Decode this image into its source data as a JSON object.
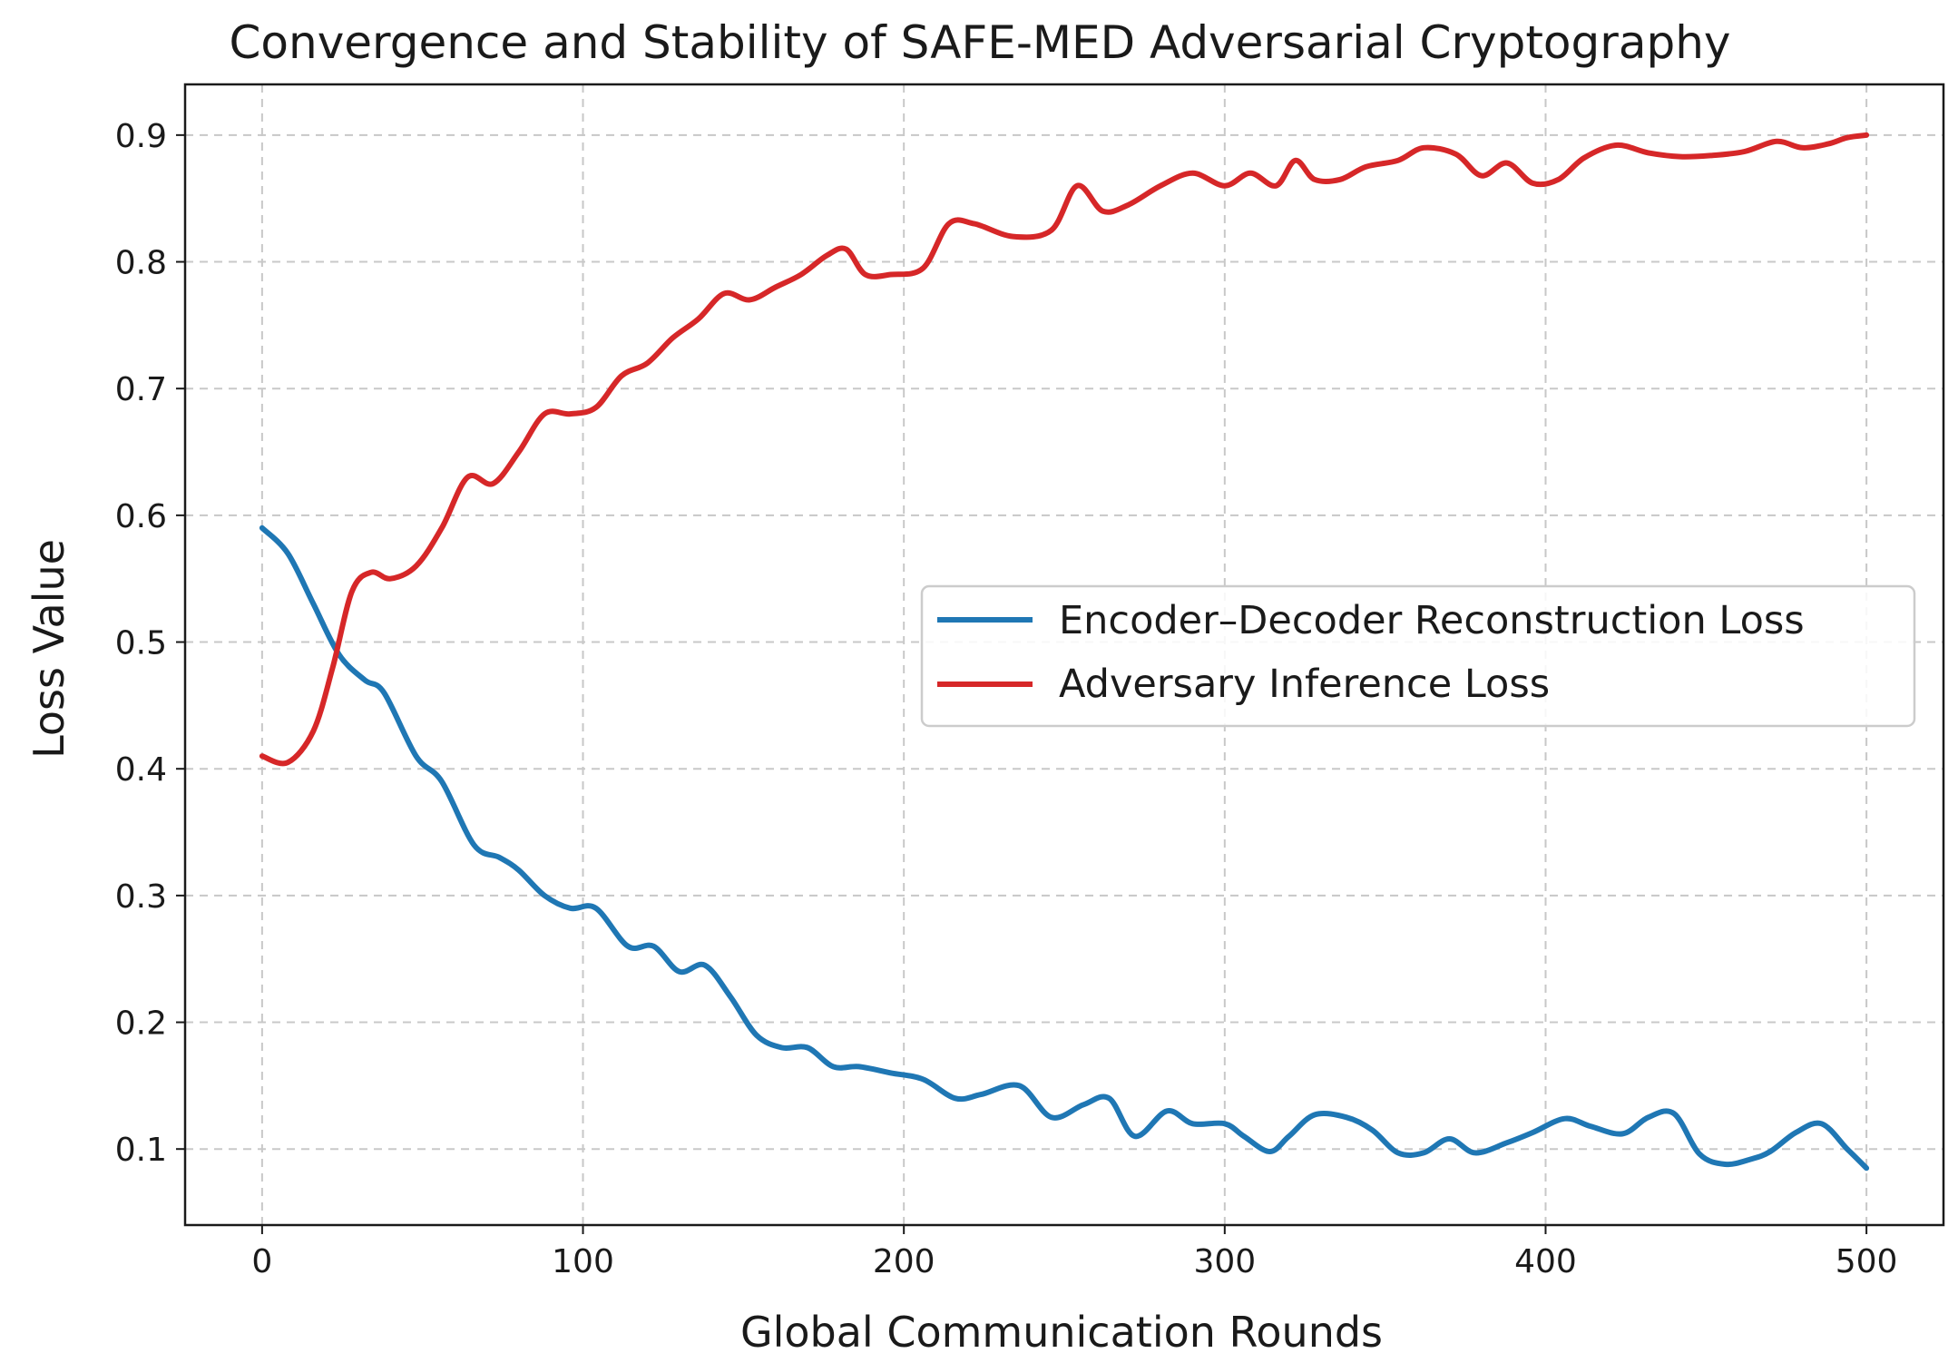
{
  "chart_data": {
    "type": "line",
    "title": "Convergence and Stability of SAFE-MED Adversarial Cryptography",
    "xlabel": "Global Communication Rounds",
    "ylabel": "Loss Value",
    "xlim": [
      -24,
      524
    ],
    "ylim": [
      0.04,
      0.94
    ],
    "xticks": [
      0,
      100,
      200,
      300,
      400,
      500
    ],
    "yticks": [
      0.1,
      0.2,
      0.3,
      0.4,
      0.5,
      0.6,
      0.7,
      0.8,
      0.9
    ],
    "grid": true,
    "legend": "center-right",
    "series": [
      {
        "name": "Encoder–Decoder Reconstruction Loss",
        "color": "#1f77b4",
        "x": [
          0,
          8,
          16,
          24,
          32,
          38,
          48,
          56,
          66,
          74,
          80,
          88,
          96,
          104,
          114,
          122,
          130,
          138,
          146,
          154,
          162,
          170,
          178,
          186,
          196,
          206,
          216,
          224,
          236,
          246,
          256,
          264,
          272,
          282,
          290,
          300,
          306,
          314,
          320,
          328,
          338,
          346,
          354,
          362,
          370,
          378,
          388,
          396,
          406,
          414,
          424,
          432,
          440,
          448,
          456,
          464,
          470,
          478,
          486,
          494,
          500
        ],
        "values": [
          0.59,
          0.57,
          0.53,
          0.49,
          0.47,
          0.46,
          0.41,
          0.39,
          0.34,
          0.33,
          0.32,
          0.3,
          0.29,
          0.29,
          0.26,
          0.26,
          0.24,
          0.245,
          0.22,
          0.19,
          0.18,
          0.18,
          0.165,
          0.165,
          0.16,
          0.155,
          0.14,
          0.143,
          0.15,
          0.125,
          0.135,
          0.14,
          0.11,
          0.13,
          0.12,
          0.12,
          0.11,
          0.098,
          0.11,
          0.127,
          0.125,
          0.115,
          0.097,
          0.097,
          0.108,
          0.097,
          0.105,
          0.113,
          0.124,
          0.118,
          0.112,
          0.125,
          0.128,
          0.096,
          0.088,
          0.092,
          0.098,
          0.113,
          0.12,
          0.1,
          0.085
        ]
      },
      {
        "name": "Adversary Inference Loss",
        "color": "#d62728",
        "x": [
          0,
          8,
          16,
          22,
          28,
          34,
          40,
          48,
          56,
          64,
          72,
          80,
          88,
          96,
          104,
          112,
          120,
          128,
          136,
          144,
          152,
          160,
          168,
          176,
          182,
          188,
          196,
          206,
          214,
          222,
          234,
          246,
          254,
          262,
          270,
          280,
          290,
          300,
          308,
          316,
          322,
          328,
          336,
          344,
          354,
          362,
          372,
          380,
          388,
          396,
          404,
          412,
          422,
          432,
          442,
          452,
          462,
          472,
          480,
          488,
          494,
          500
        ],
        "values": [
          0.41,
          0.405,
          0.43,
          0.48,
          0.54,
          0.555,
          0.55,
          0.56,
          0.59,
          0.63,
          0.625,
          0.65,
          0.68,
          0.68,
          0.685,
          0.71,
          0.72,
          0.74,
          0.755,
          0.775,
          0.77,
          0.78,
          0.79,
          0.805,
          0.81,
          0.79,
          0.79,
          0.795,
          0.83,
          0.83,
          0.82,
          0.825,
          0.86,
          0.84,
          0.845,
          0.86,
          0.87,
          0.86,
          0.87,
          0.86,
          0.88,
          0.865,
          0.865,
          0.875,
          0.88,
          0.89,
          0.885,
          0.868,
          0.878,
          0.862,
          0.865,
          0.882,
          0.892,
          0.886,
          0.883,
          0.884,
          0.887,
          0.895,
          0.89,
          0.893,
          0.898,
          0.9
        ]
      }
    ]
  }
}
